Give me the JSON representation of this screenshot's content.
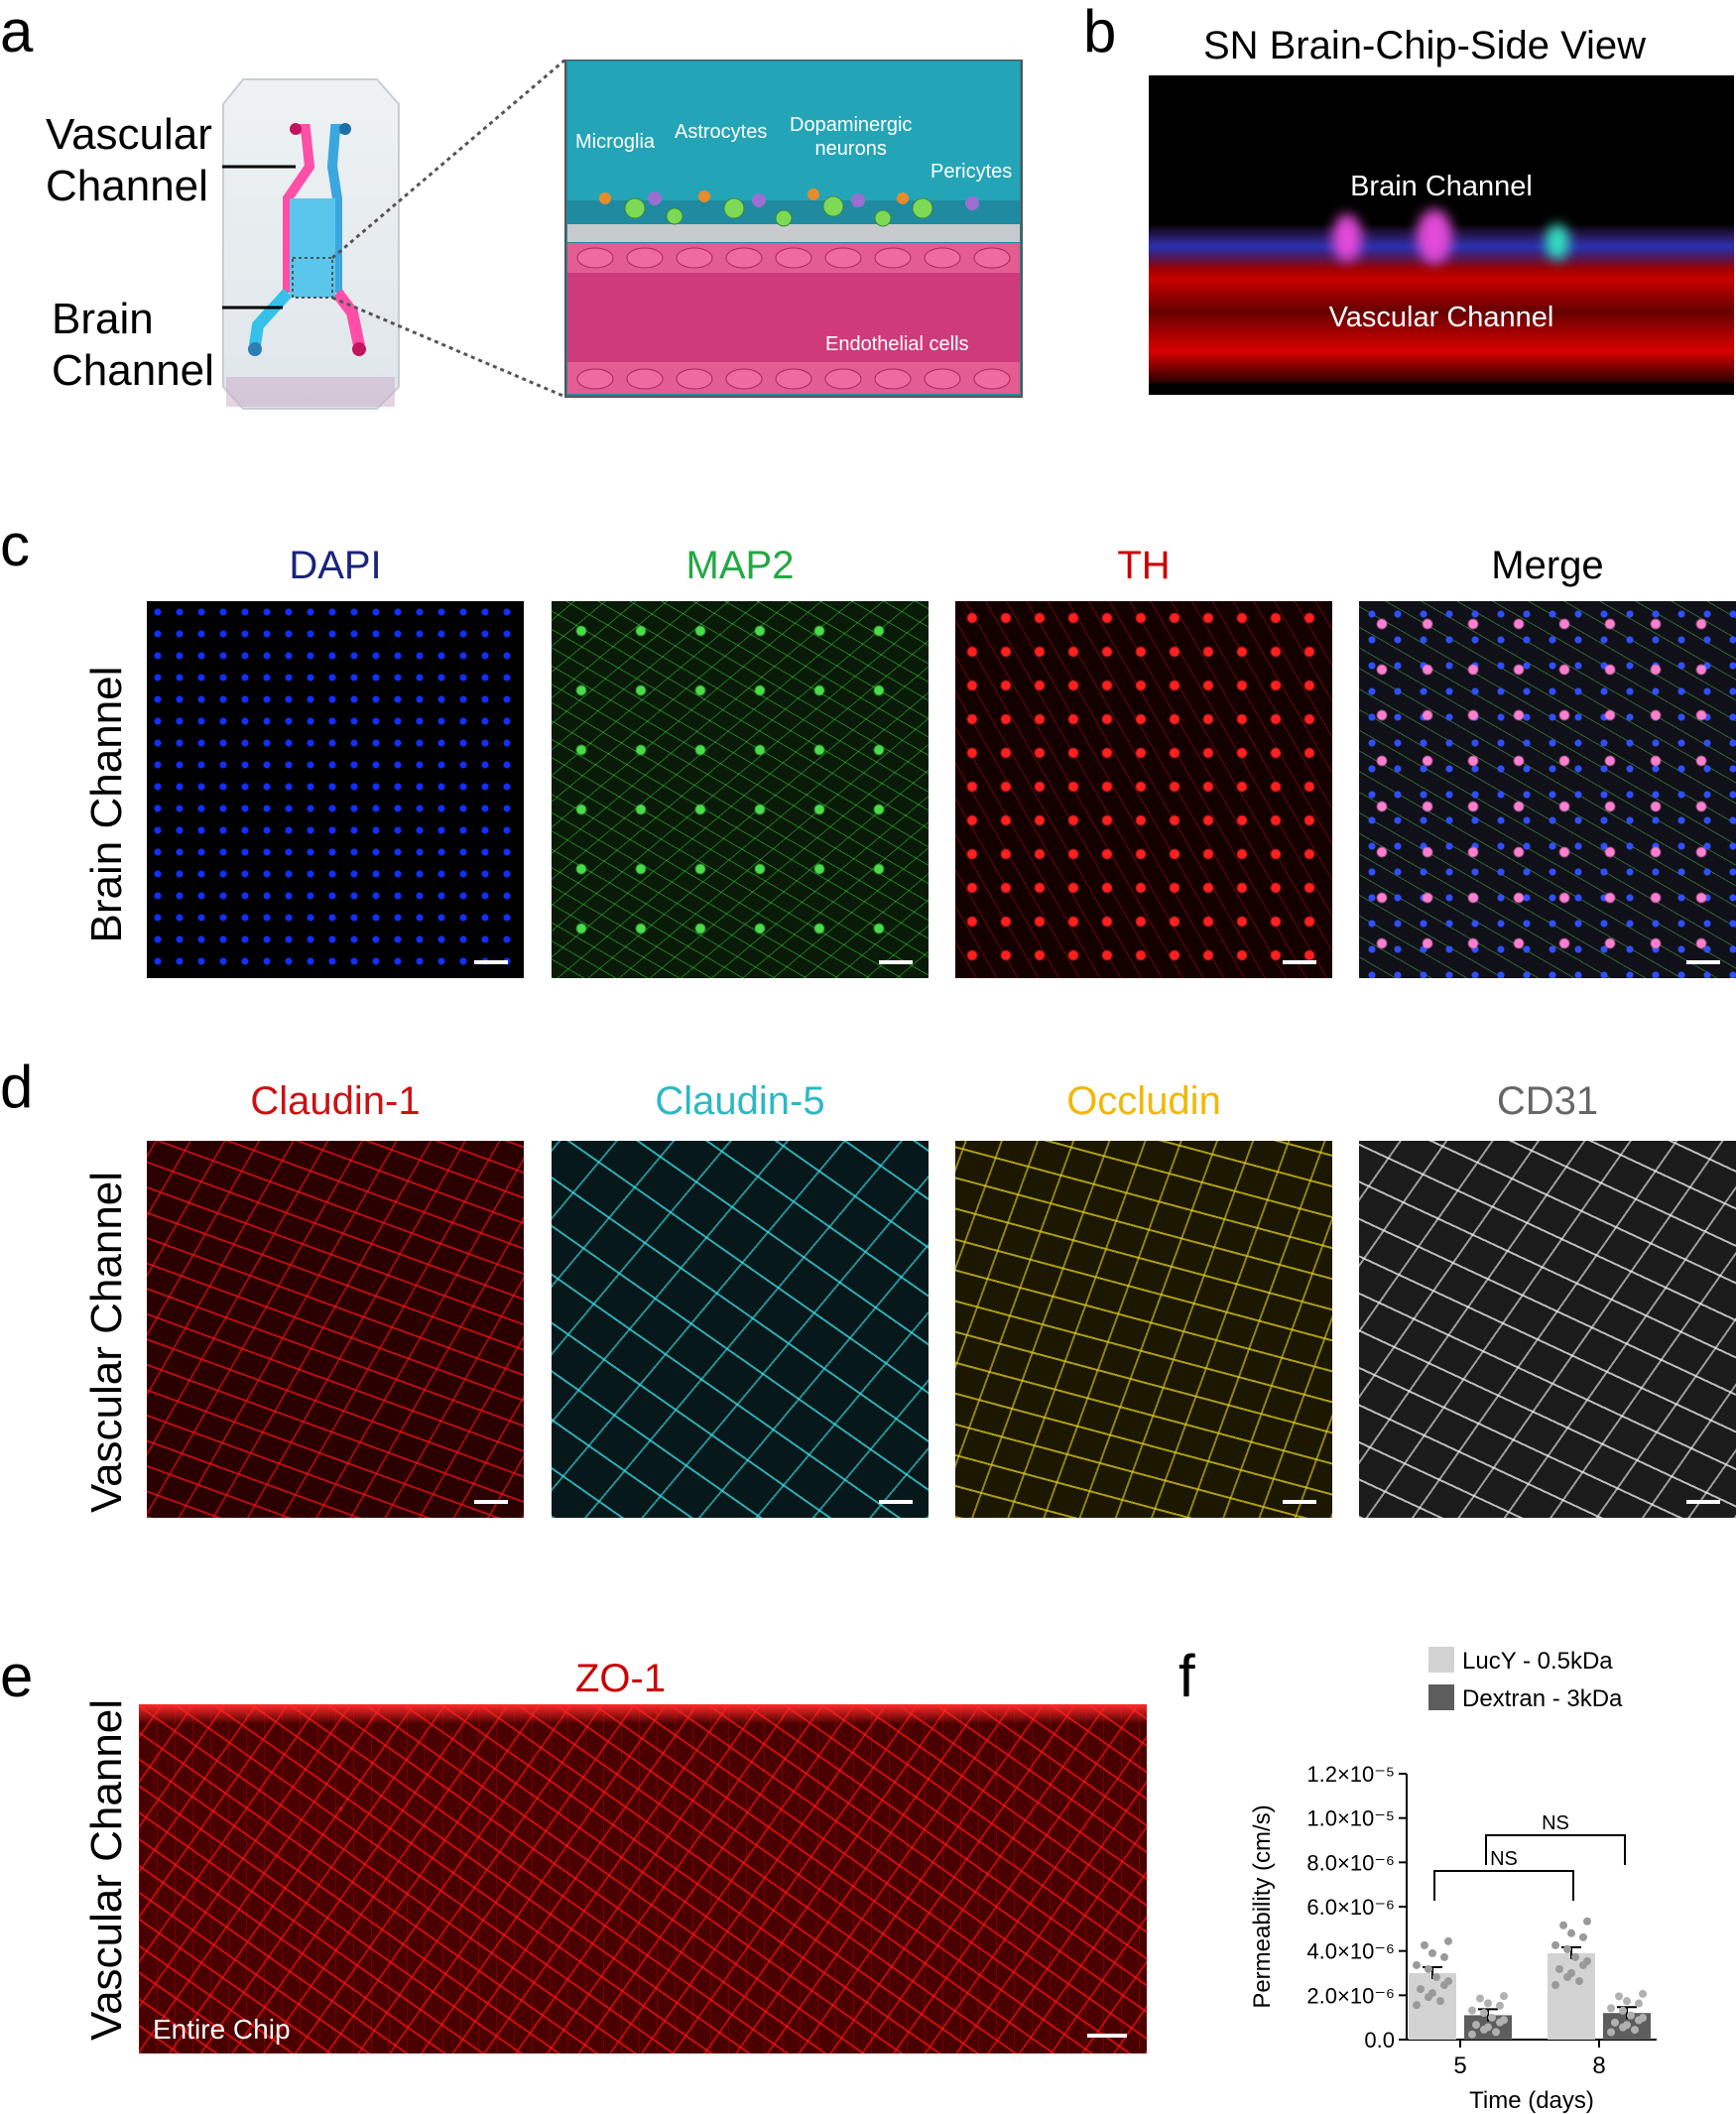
{
  "panels": {
    "a": "a",
    "b": "b",
    "c": "c",
    "d": "d",
    "e": "e",
    "f": "f"
  },
  "panel_a": {
    "label_vascular": [
      "Vascular",
      "Channel"
    ],
    "label_brain": [
      "Brain",
      "Channel"
    ],
    "diagram_labels": {
      "microglia": "Microglia",
      "astrocytes": "Astrocytes",
      "dopaminergic": [
        "Dopaminergic",
        "neurons"
      ],
      "pericytes": "Pericytes",
      "endothelial": "Endothelial cells"
    }
  },
  "panel_b": {
    "title": "SN Brain-Chip-Side View",
    "brain": "Brain Channel",
    "vascular": "Vascular Channel"
  },
  "panel_c": {
    "row_label": "Brain Channel",
    "columns": [
      "DAPI",
      "MAP2",
      "TH",
      "Merge"
    ],
    "colors": [
      "#1a237e",
      "#22a844",
      "#cc0000",
      "#000000"
    ]
  },
  "panel_d": {
    "row_label": "Vascular Channel",
    "columns": [
      "Claudin-1",
      "Claudin-5",
      "Occludin",
      "CD31"
    ],
    "colors": [
      "#cc1111",
      "#2bb8c4",
      "#f2b705",
      "#666666"
    ]
  },
  "panel_e": {
    "row_label": "Vascular Channel",
    "title": "ZO-1",
    "caption": "Entire Chip"
  },
  "chart_data": {
    "type": "bar",
    "categories": [
      "5",
      "8"
    ],
    "series": [
      {
        "name": "LucY - 0.5kDa",
        "color": "#d3d3d3",
        "values": [
          3e-06,
          3.9e-06
        ]
      },
      {
        "name": "Dextran - 3kDa",
        "color": "#5d5d5d",
        "values": [
          1.1e-06,
          1.2e-06
        ]
      }
    ],
    "xlabel": "Time (days)",
    "ylabel": "Permeability (cm/s)",
    "ylim": [
      0,
      1.2e-05
    ],
    "yticks": [
      "0.0",
      "2.0×10⁻⁶",
      "4.0×10⁻⁶",
      "6.0×10⁻⁶",
      "8.0×10⁻⁶",
      "1.0×10⁻⁵",
      "1.2×10⁻⁵"
    ],
    "yticks_values": [
      0,
      2e-06,
      4e-06,
      6e-06,
      8e-06,
      1e-05,
      1.2e-05
    ],
    "annotations": [
      "NS",
      "NS"
    ],
    "legend": "top"
  }
}
